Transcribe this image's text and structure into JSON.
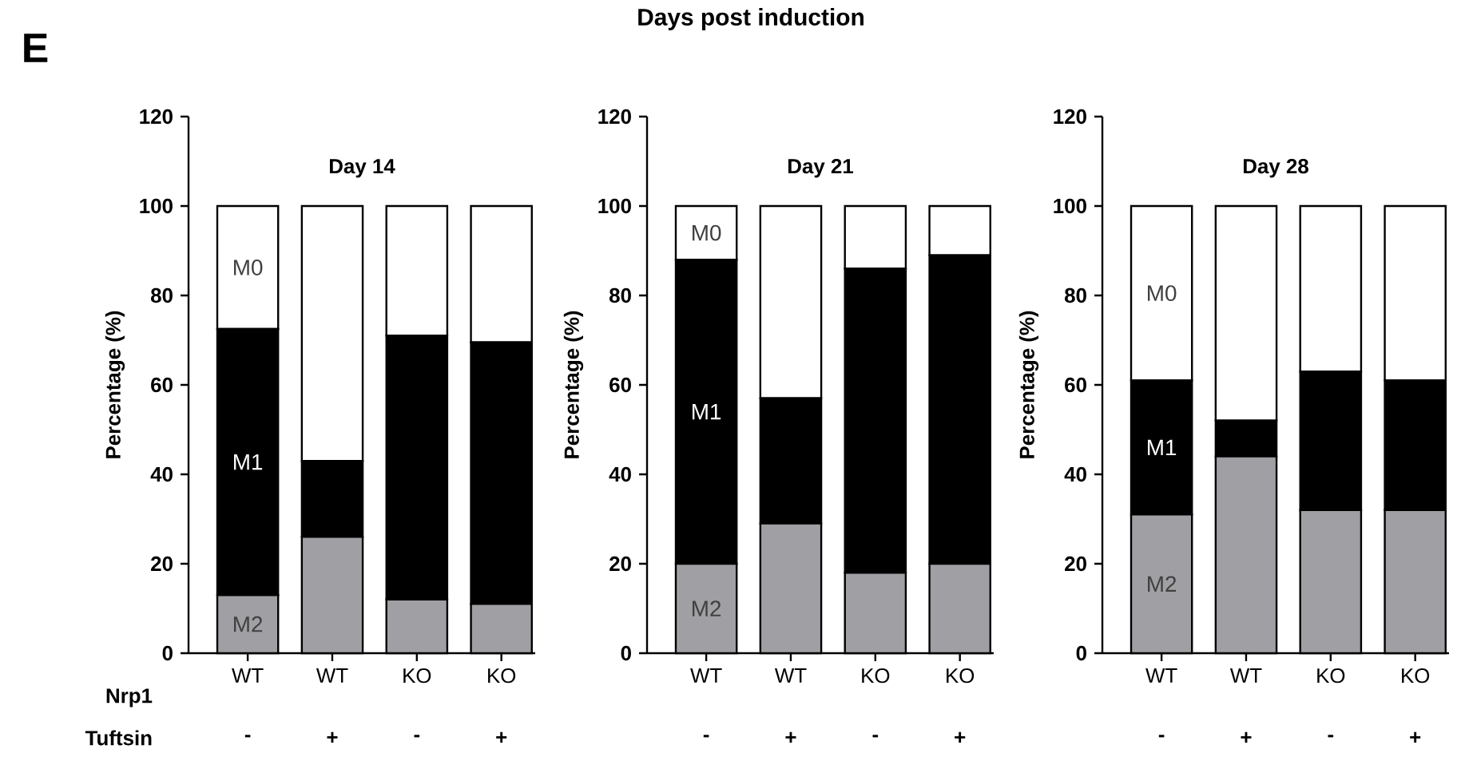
{
  "chart_data": [
    {
      "type": "bar",
      "stacked": true,
      "title": "Day 14",
      "ylabel": "Percentage (%)",
      "categories": [
        "WT",
        "WT",
        "KO",
        "KO"
      ],
      "ylim": [
        0,
        120
      ],
      "yticks": [
        0,
        20,
        40,
        60,
        80,
        100,
        120
      ],
      "series": [
        {
          "name": "M2",
          "color": "#a0a0a4",
          "values": [
            13,
            26,
            12,
            11
          ]
        },
        {
          "name": "M1",
          "color": "#000000",
          "values": [
            59.5,
            17,
            59,
            58.5
          ]
        },
        {
          "name": "M0",
          "color": "#ffffff",
          "values": [
            27.5,
            57,
            29,
            30.5
          ]
        }
      ],
      "annotations": [
        "E",
        "Days post induction",
        "Nrp1",
        "Tuftsin",
        "-",
        "+",
        "-",
        "+"
      ]
    },
    {
      "type": "bar",
      "stacked": true,
      "title": "Day 21",
      "ylabel": "Percentage (%)",
      "categories": [
        "WT",
        "WT",
        "KO",
        "KO"
      ],
      "ylim": [
        0,
        120
      ],
      "yticks": [
        0,
        20,
        40,
        60,
        80,
        100,
        120
      ],
      "series": [
        {
          "name": "M2",
          "color": "#a0a0a4",
          "values": [
            20,
            29,
            18,
            20
          ]
        },
        {
          "name": "M1",
          "color": "#000000",
          "values": [
            68,
            28,
            68,
            69
          ]
        },
        {
          "name": "M0",
          "color": "#ffffff",
          "values": [
            12,
            43,
            14,
            11
          ]
        }
      ],
      "annotations": [
        "-",
        "+",
        "-",
        "+"
      ]
    },
    {
      "type": "bar",
      "stacked": true,
      "title": "Day 28",
      "ylabel": "Percentage (%)",
      "categories": [
        "WT",
        "WT",
        "KO",
        "KO"
      ],
      "ylim": [
        0,
        120
      ],
      "yticks": [
        0,
        20,
        40,
        60,
        80,
        100,
        120
      ],
      "series": [
        {
          "name": "M2",
          "color": "#a0a0a4",
          "values": [
            31,
            44,
            32,
            32
          ]
        },
        {
          "name": "M1",
          "color": "#000000",
          "values": [
            30,
            8,
            31,
            29
          ]
        },
        {
          "name": "M0",
          "color": "#ffffff",
          "values": [
            39,
            48,
            37,
            39
          ]
        }
      ],
      "annotations": [
        "-",
        "+",
        "-",
        "+"
      ]
    }
  ]
}
